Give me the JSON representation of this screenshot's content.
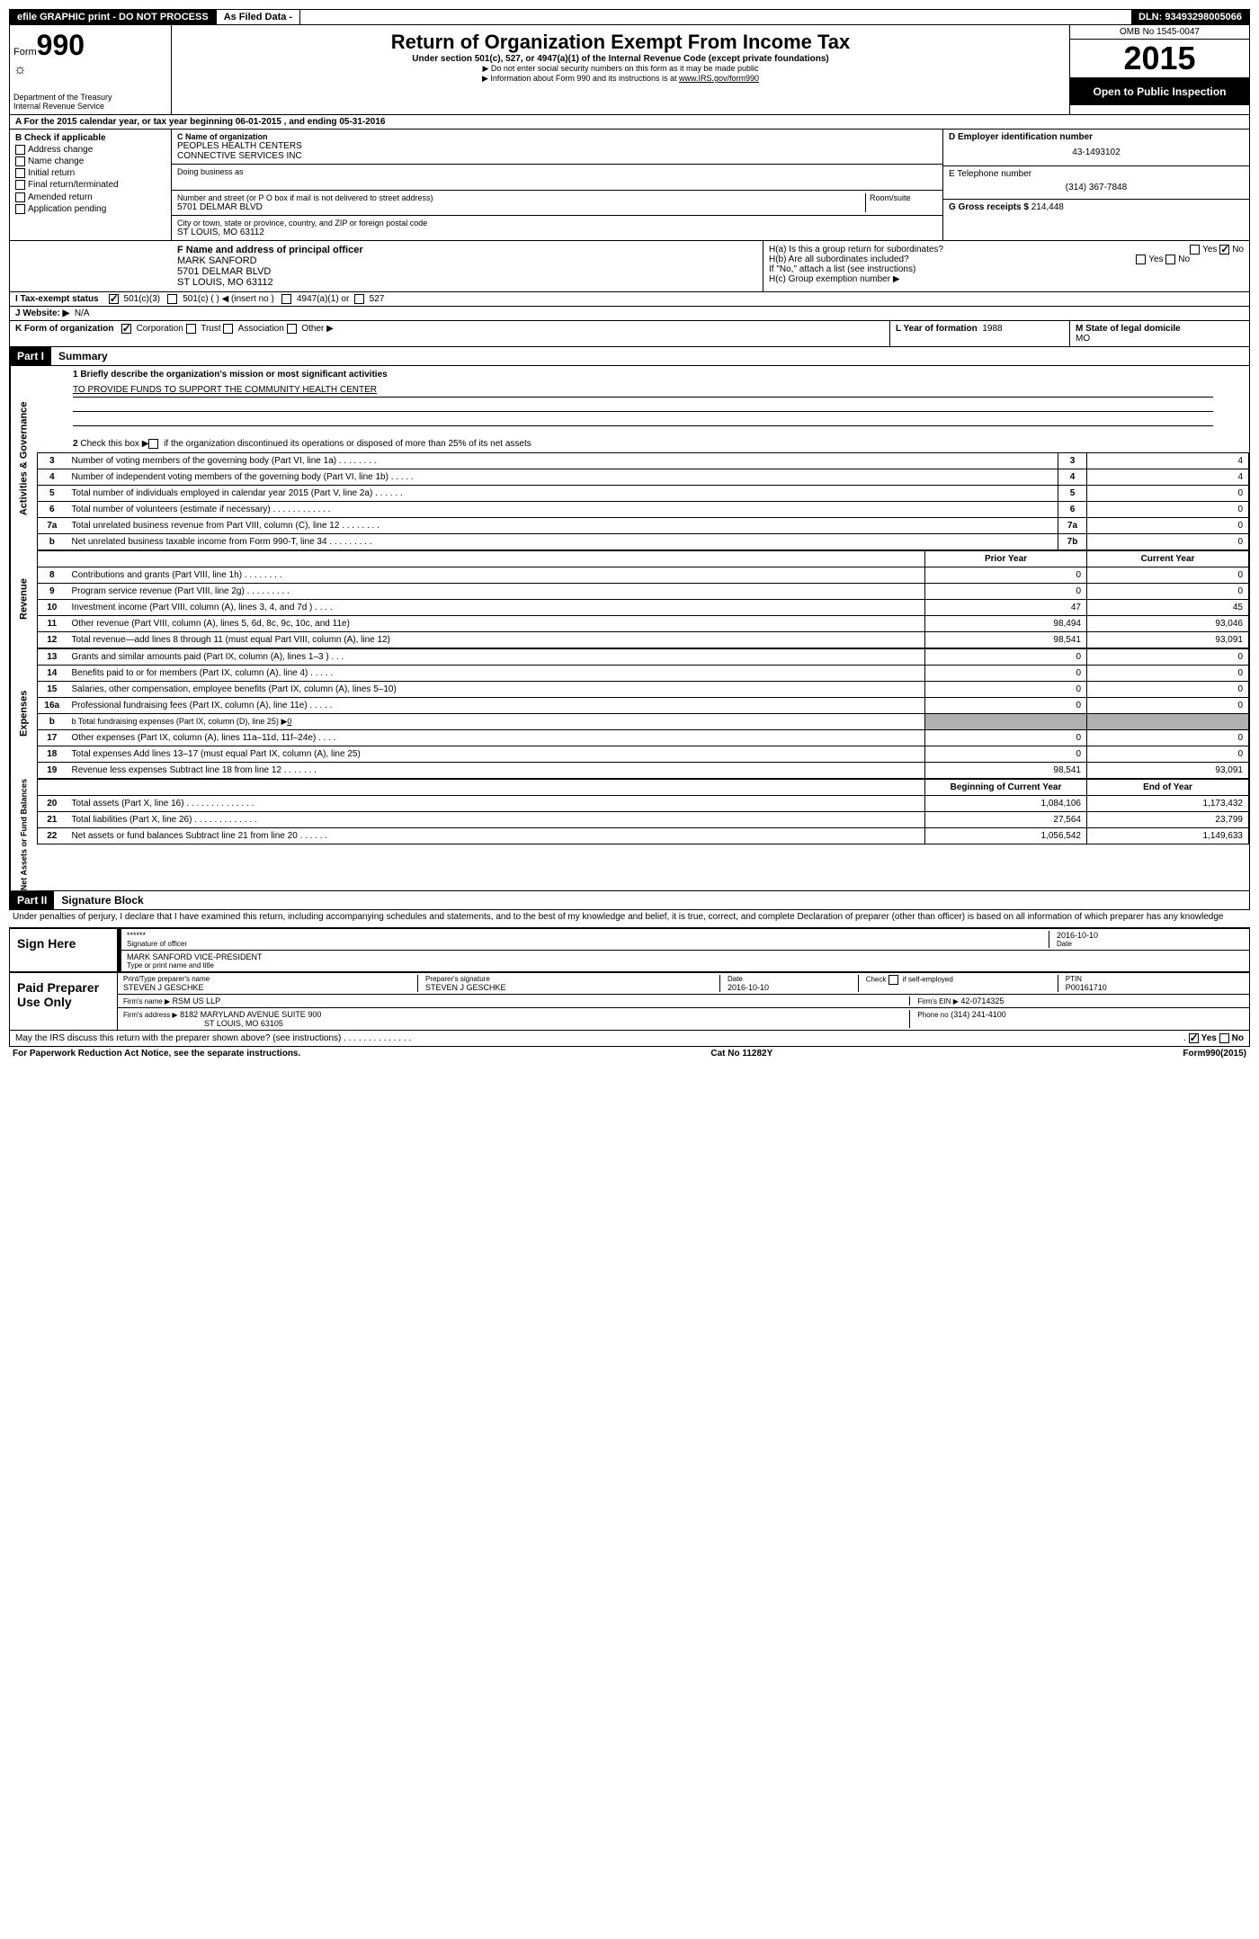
{
  "topbar": {
    "efile": "efile GRAPHIC print - DO NOT PROCESS",
    "asfiled": "As Filed Data -",
    "dln_label": "DLN:",
    "dln": "93493298005066"
  },
  "header": {
    "form_word": "Form",
    "form_num": "990",
    "dept": "Department of the Treasury",
    "irs": "Internal Revenue Service",
    "title": "Return of Organization Exempt From Income Tax",
    "subtitle": "Under section 501(c), 527, or 4947(a)(1) of the Internal Revenue Code (except private foundations)",
    "note1": "▶ Do not enter social security numbers on this form as it may be made public",
    "note2": "▶ Information about Form 990 and its instructions is at www.IRS.gov/form990",
    "omb": "OMB No 1545-0047",
    "year": "2015",
    "open": "Open to Public Inspection"
  },
  "line_a": "A  For the 2015 calendar year, or tax year beginning 06-01-2015    , and ending 05-31-2016",
  "section_b": {
    "label": "B  Check if applicable",
    "addr_change": "Address change",
    "name_change": "Name change",
    "initial": "Initial return",
    "final": "Final return/terminated",
    "amended": "Amended return",
    "app_pending": "Application pending"
  },
  "section_c": {
    "label": "C Name of organization",
    "name1": "PEOPLES HEALTH CENTERS",
    "name2": "CONNECTIVE SERVICES INC",
    "dba_label": "Doing business as",
    "street_label": "Number and street (or P O  box if mail is not delivered to street address)",
    "room_label": "Room/suite",
    "street": "5701 DELMAR BLVD",
    "city_label": "City or town, state or province, country, and ZIP or foreign postal code",
    "city": "ST LOUIS, MO  63112"
  },
  "section_d": {
    "label": "D Employer identification number",
    "value": "43-1493102"
  },
  "section_e": {
    "label": "E Telephone number",
    "value": "(314) 367-7848"
  },
  "section_g": {
    "label": "G Gross receipts $",
    "value": "214,448"
  },
  "section_f": {
    "label": "F   Name and address of principal officer",
    "name": "MARK SANFORD",
    "addr1": "5701 DELMAR BLVD",
    "addr2": "ST LOUIS, MO  63112"
  },
  "section_h": {
    "a": "H(a)  Is this a group return for subordinates?",
    "b": "H(b)  Are all subordinates included?",
    "note": "If \"No,\" attach a list  (see instructions)",
    "c": "H(c)   Group exemption number ▶",
    "yes": "Yes",
    "no": "No"
  },
  "section_i": {
    "label": "I   Tax-exempt status",
    "opt1": "501(c)(3)",
    "opt2": "501(c) (  ) ◀ (insert no )",
    "opt3": "4947(a)(1) or",
    "opt4": "527"
  },
  "section_j": {
    "label": "J  Website: ▶",
    "value": "N/A"
  },
  "section_k": {
    "label": "K Form of organization",
    "corp": "Corporation",
    "trust": "Trust",
    "assoc": "Association",
    "other": "Other ▶"
  },
  "section_l": {
    "label": "L Year of formation",
    "value": "1988"
  },
  "section_m": {
    "label": "M State of legal domicile",
    "value": "MO"
  },
  "part1": {
    "label": "Part I",
    "title": "Summary"
  },
  "summary": {
    "line1_label": "1 Briefly describe the organization's mission or most significant activities",
    "line1_text": "TO PROVIDE FUNDS TO SUPPORT THE COMMUNITY HEALTH CENTER",
    "line2": "2  Check this box ▶     if the organization discontinued its operations or disposed of more than 25% of its net assets",
    "rows_ag": [
      {
        "n": "3",
        "d": "Number of voting members of the governing body (Part VI, line 1a)  .   .   .   .   .   .   .   .",
        "b": "3",
        "v": "4"
      },
      {
        "n": "4",
        "d": "Number of independent voting members of the governing body (Part VI, line 1b)  .   .   .   .   .",
        "b": "4",
        "v": "4"
      },
      {
        "n": "5",
        "d": "Total number of individuals employed in calendar year 2015 (Part V, line 2a)  .   .   .   .   .   .",
        "b": "5",
        "v": "0"
      },
      {
        "n": "6",
        "d": "Total number of volunteers (estimate if necessary)   .   .   .   .   .   .   .   .   .   .   .   .",
        "b": "6",
        "v": "0"
      },
      {
        "n": "7a",
        "d": "Total unrelated business revenue from Part VIII, column (C), line 12   .   .   .   .   .   .   .   .",
        "b": "7a",
        "v": "0"
      },
      {
        "n": "b",
        "d": "Net unrelated business taxable income from Form 990-T, line 34   .   .   .   .   .   .   .   .   .",
        "b": "7b",
        "v": "0"
      }
    ],
    "prior_year": "Prior Year",
    "current_year": "Current Year",
    "rows_rev": [
      {
        "n": "8",
        "d": "Contributions and grants (Part VIII, line 1h)   .   .   .   .   .   .   .   .",
        "p": "0",
        "c": "0"
      },
      {
        "n": "9",
        "d": "Program service revenue (Part VIII, line 2g)   .   .   .   .   .   .   .   .   .",
        "p": "0",
        "c": "0"
      },
      {
        "n": "10",
        "d": "Investment income (Part VIII, column (A), lines 3, 4, and 7d )   .   .   .   .",
        "p": "47",
        "c": "45"
      },
      {
        "n": "11",
        "d": "Other revenue (Part VIII, column (A), lines 5, 6d, 8c, 9c, 10c, and 11e)",
        "p": "98,494",
        "c": "93,046"
      },
      {
        "n": "12",
        "d": "Total revenue—add lines 8 through 11 (must equal Part VIII, column (A), line 12)",
        "p": "98,541",
        "c": "93,091"
      }
    ],
    "rows_exp": [
      {
        "n": "13",
        "d": "Grants and similar amounts paid (Part IX, column (A), lines 1–3 )   .   .   .",
        "p": "0",
        "c": "0"
      },
      {
        "n": "14",
        "d": "Benefits paid to or for members (Part IX, column (A), line 4)   .   .   .   .   .",
        "p": "0",
        "c": "0"
      },
      {
        "n": "15",
        "d": "Salaries, other compensation, employee benefits (Part IX, column (A), lines 5–10)",
        "p": "0",
        "c": "0"
      },
      {
        "n": "16a",
        "d": "Professional fundraising fees (Part IX, column (A), line 11e)   .   .   .   .   .",
        "p": "0",
        "c": "0"
      }
    ],
    "line_b": "b       Total fundraising expenses (Part IX, column (D), line 25) ▶",
    "line_b_val": "0",
    "rows_exp2": [
      {
        "n": "17",
        "d": "Other expenses (Part IX, column (A), lines 11a–11d, 11f–24e)   .   .   .   .",
        "p": "0",
        "c": "0"
      },
      {
        "n": "18",
        "d": "Total expenses  Add lines 13–17 (must equal Part IX, column (A), line 25)",
        "p": "0",
        "c": "0"
      },
      {
        "n": "19",
        "d": "Revenue less expenses  Subtract line 18 from line 12   .   .   .   .   .   .   .",
        "p": "98,541",
        "c": "93,091"
      }
    ],
    "begin_year": "Beginning of Current Year",
    "end_year": "End of Year",
    "rows_na": [
      {
        "n": "20",
        "d": "Total assets (Part X, line 16)   .   .   .   .   .   .   .   .   .   .   .   .   .   .",
        "p": "1,084,106",
        "c": "1,173,432"
      },
      {
        "n": "21",
        "d": "Total liabilities (Part X, line 26)   .   .   .   .   .   .   .   .   .   .   .   .   .",
        "p": "27,564",
        "c": "23,799"
      },
      {
        "n": "22",
        "d": "Net assets or fund balances  Subtract line 21 from line 20   .   .   .   .   .   .",
        "p": "1,056,542",
        "c": "1,149,633"
      }
    ]
  },
  "sides": {
    "ag": "Activities & Governance",
    "rev": "Revenue",
    "exp": "Expenses",
    "na": "Net Assets or Fund Balances"
  },
  "part2": {
    "label": "Part II",
    "title": "Signature Block"
  },
  "perjury": "Under penalties of perjury, I declare that I have examined this return, including accompanying schedules and statements, and to the best of my knowledge and belief, it is true, correct, and complete  Declaration of preparer (other than officer) is based on all information of which preparer has any knowledge",
  "sign": {
    "here": "Sign Here",
    "stars": "******",
    "sig_officer": "Signature of officer",
    "date_label": "Date",
    "date": "2016-10-10",
    "name": "MARK SANFORD VICE-PRESIDENT",
    "type_label": "Type or print name and title"
  },
  "preparer": {
    "label": "Paid Preparer Use Only",
    "print_label": "Print/Type preparer's name",
    "name": "STEVEN J GESCHKE",
    "sig_label": "Preparer's signature",
    "sig": "STEVEN J GESCHKE",
    "date_label": "Date",
    "date": "2016-10-10",
    "check_label": "Check      if self-employed",
    "ptin_label": "PTIN",
    "ptin": "P00161710",
    "firm_label": "Firm's name   ▶",
    "firm": "RSM US LLP",
    "ein_label": "Firm's EIN ▶",
    "ein": "42-0714325",
    "addr_label": "Firm's address ▶",
    "addr1": "8182 MARYLAND AVENUE SUITE 900",
    "addr2": "ST LOUIS, MO  63105",
    "phone_label": "Phone no",
    "phone": "(314) 241-4100"
  },
  "discuss": "May the IRS discuss this return with the preparer shown above? (see instructions)   .   .   .   .   .   .   .   .   .   .   .   .   .   .",
  "discuss_yes": "Yes",
  "discuss_no": "No",
  "footer": {
    "left": "For Paperwork Reduction Act Notice, see the separate instructions.",
    "mid": "Cat No  11282Y",
    "right": "Form 990 (2015)"
  }
}
